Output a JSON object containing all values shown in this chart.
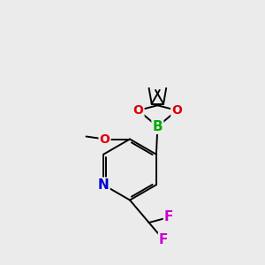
{
  "background_color": "#ebebeb",
  "atom_colors": {
    "C": "#000000",
    "N": "#0000cc",
    "O": "#dd0000",
    "B": "#00aa00",
    "F": "#cc00cc",
    "H": "#000000"
  },
  "bond_color": "#000000",
  "bond_width": 1.4,
  "font_size_atom": 11,
  "font_size_small": 9
}
